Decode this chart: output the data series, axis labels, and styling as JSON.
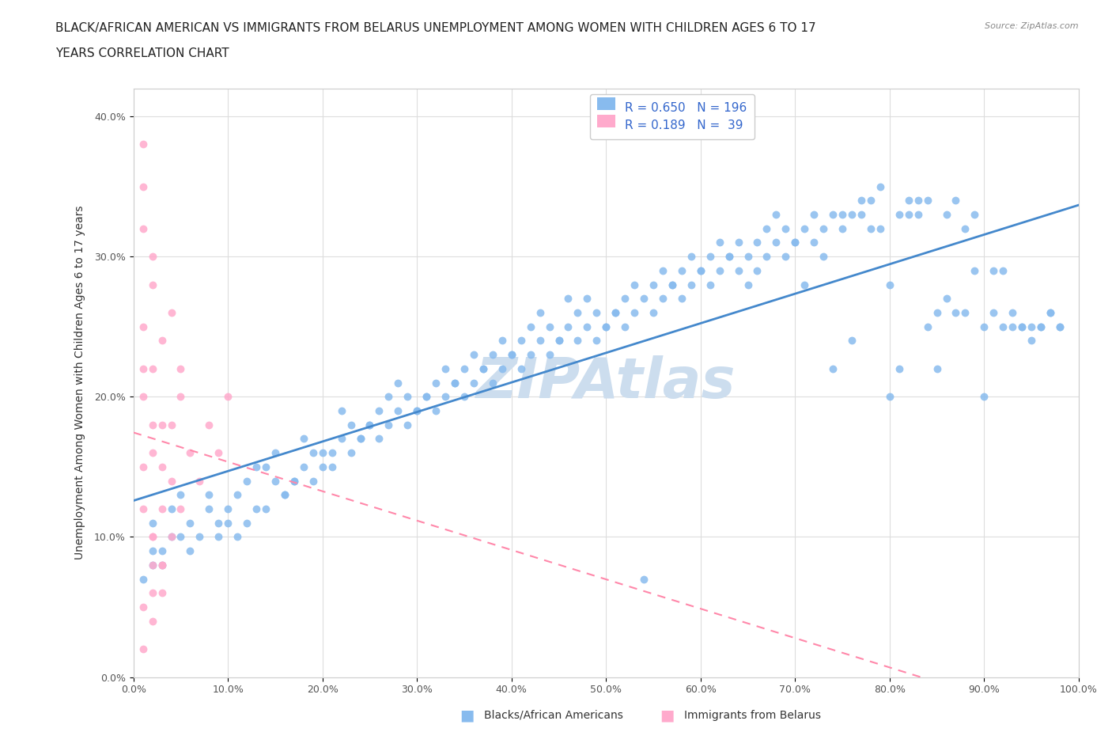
{
  "title_line1": "BLACK/AFRICAN AMERICAN VS IMMIGRANTS FROM BELARUS UNEMPLOYMENT AMONG WOMEN WITH CHILDREN AGES 6 TO 17",
  "title_line2": "YEARS CORRELATION CHART",
  "source": "Source: ZipAtlas.com",
  "xlabel": "",
  "ylabel": "Unemployment Among Women with Children Ages 6 to 17 years",
  "xlim": [
    0.0,
    1.0
  ],
  "ylim": [
    0.0,
    0.42
  ],
  "xticks": [
    0.0,
    0.1,
    0.2,
    0.3,
    0.4,
    0.5,
    0.6,
    0.7,
    0.8,
    0.9,
    1.0
  ],
  "yticks": [
    0.0,
    0.1,
    0.2,
    0.3,
    0.4
  ],
  "xtick_labels": [
    "0.0%",
    "10.0%",
    "20.0%",
    "30.0%",
    "40.0%",
    "50.0%",
    "60.0%",
    "70.0%",
    "80.0%",
    "90.0%",
    "100.0%"
  ],
  "ytick_labels": [
    "0.0%",
    "10.0%",
    "20.0%",
    "30.0%",
    "40.0%"
  ],
  "blue_color": "#88BBEE",
  "pink_color": "#FFAACC",
  "trend_blue": "#4488CC",
  "trend_pink": "#FF88AA",
  "watermark_color": "#CCDDEE",
  "R_blue": 0.65,
  "N_blue": 196,
  "R_pink": 0.189,
  "N_pink": 39,
  "blue_scatter": [
    [
      0.02,
      0.08
    ],
    [
      0.03,
      0.09
    ],
    [
      0.04,
      0.1
    ],
    [
      0.01,
      0.07
    ],
    [
      0.02,
      0.11
    ],
    [
      0.03,
      0.08
    ],
    [
      0.05,
      0.1
    ],
    [
      0.04,
      0.12
    ],
    [
      0.02,
      0.09
    ],
    [
      0.06,
      0.11
    ],
    [
      0.05,
      0.13
    ],
    [
      0.07,
      0.1
    ],
    [
      0.08,
      0.12
    ],
    [
      0.06,
      0.09
    ],
    [
      0.09,
      0.11
    ],
    [
      0.1,
      0.12
    ],
    [
      0.11,
      0.13
    ],
    [
      0.09,
      0.1
    ],
    [
      0.12,
      0.14
    ],
    [
      0.1,
      0.11
    ],
    [
      0.08,
      0.13
    ],
    [
      0.13,
      0.12
    ],
    [
      0.14,
      0.15
    ],
    [
      0.11,
      0.1
    ],
    [
      0.15,
      0.14
    ],
    [
      0.12,
      0.11
    ],
    [
      0.16,
      0.13
    ],
    [
      0.13,
      0.15
    ],
    [
      0.17,
      0.14
    ],
    [
      0.14,
      0.12
    ],
    [
      0.15,
      0.16
    ],
    [
      0.18,
      0.15
    ],
    [
      0.16,
      0.13
    ],
    [
      0.19,
      0.16
    ],
    [
      0.17,
      0.14
    ],
    [
      0.2,
      0.15
    ],
    [
      0.18,
      0.17
    ],
    [
      0.21,
      0.16
    ],
    [
      0.19,
      0.14
    ],
    [
      0.22,
      0.17
    ],
    [
      0.2,
      0.16
    ],
    [
      0.23,
      0.18
    ],
    [
      0.21,
      0.15
    ],
    [
      0.24,
      0.17
    ],
    [
      0.22,
      0.19
    ],
    [
      0.25,
      0.18
    ],
    [
      0.23,
      0.16
    ],
    [
      0.26,
      0.19
    ],
    [
      0.24,
      0.17
    ],
    [
      0.27,
      0.2
    ],
    [
      0.25,
      0.18
    ],
    [
      0.28,
      0.19
    ],
    [
      0.26,
      0.17
    ],
    [
      0.29,
      0.2
    ],
    [
      0.27,
      0.18
    ],
    [
      0.3,
      0.19
    ],
    [
      0.28,
      0.21
    ],
    [
      0.31,
      0.2
    ],
    [
      0.29,
      0.18
    ],
    [
      0.32,
      0.21
    ],
    [
      0.3,
      0.19
    ],
    [
      0.33,
      0.22
    ],
    [
      0.31,
      0.2
    ],
    [
      0.34,
      0.21
    ],
    [
      0.32,
      0.19
    ],
    [
      0.35,
      0.22
    ],
    [
      0.33,
      0.2
    ],
    [
      0.36,
      0.23
    ],
    [
      0.34,
      0.21
    ],
    [
      0.37,
      0.22
    ],
    [
      0.35,
      0.2
    ],
    [
      0.38,
      0.23
    ],
    [
      0.36,
      0.21
    ],
    [
      0.39,
      0.24
    ],
    [
      0.37,
      0.22
    ],
    [
      0.4,
      0.23
    ],
    [
      0.38,
      0.21
    ],
    [
      0.41,
      0.24
    ],
    [
      0.39,
      0.22
    ],
    [
      0.42,
      0.25
    ],
    [
      0.4,
      0.23
    ],
    [
      0.43,
      0.24
    ],
    [
      0.41,
      0.22
    ],
    [
      0.44,
      0.25
    ],
    [
      0.42,
      0.23
    ],
    [
      0.45,
      0.24
    ],
    [
      0.43,
      0.26
    ],
    [
      0.46,
      0.25
    ],
    [
      0.44,
      0.23
    ],
    [
      0.47,
      0.26
    ],
    [
      0.45,
      0.24
    ],
    [
      0.48,
      0.25
    ],
    [
      0.46,
      0.27
    ],
    [
      0.49,
      0.26
    ],
    [
      0.47,
      0.24
    ],
    [
      0.5,
      0.25
    ],
    [
      0.48,
      0.27
    ],
    [
      0.51,
      0.26
    ],
    [
      0.49,
      0.24
    ],
    [
      0.52,
      0.27
    ],
    [
      0.5,
      0.25
    ],
    [
      0.53,
      0.28
    ],
    [
      0.51,
      0.26
    ],
    [
      0.54,
      0.27
    ],
    [
      0.52,
      0.25
    ],
    [
      0.55,
      0.28
    ],
    [
      0.53,
      0.26
    ],
    [
      0.56,
      0.29
    ],
    [
      0.57,
      0.28
    ],
    [
      0.54,
      0.07
    ],
    [
      0.55,
      0.26
    ],
    [
      0.58,
      0.29
    ],
    [
      0.56,
      0.27
    ],
    [
      0.59,
      0.3
    ],
    [
      0.57,
      0.28
    ],
    [
      0.6,
      0.29
    ],
    [
      0.58,
      0.27
    ],
    [
      0.61,
      0.3
    ],
    [
      0.59,
      0.28
    ],
    [
      0.62,
      0.31
    ],
    [
      0.6,
      0.29
    ],
    [
      0.63,
      0.3
    ],
    [
      0.61,
      0.28
    ],
    [
      0.64,
      0.31
    ],
    [
      0.62,
      0.29
    ],
    [
      0.65,
      0.28
    ],
    [
      0.63,
      0.3
    ],
    [
      0.66,
      0.31
    ],
    [
      0.64,
      0.29
    ],
    [
      0.67,
      0.32
    ],
    [
      0.65,
      0.3
    ],
    [
      0.68,
      0.31
    ],
    [
      0.66,
      0.29
    ],
    [
      0.69,
      0.32
    ],
    [
      0.67,
      0.3
    ],
    [
      0.7,
      0.31
    ],
    [
      0.68,
      0.33
    ],
    [
      0.71,
      0.32
    ],
    [
      0.69,
      0.3
    ],
    [
      0.72,
      0.33
    ],
    [
      0.7,
      0.31
    ],
    [
      0.73,
      0.32
    ],
    [
      0.71,
      0.28
    ],
    [
      0.74,
      0.33
    ],
    [
      0.72,
      0.31
    ],
    [
      0.75,
      0.32
    ],
    [
      0.73,
      0.3
    ],
    [
      0.76,
      0.33
    ],
    [
      0.74,
      0.22
    ],
    [
      0.77,
      0.34
    ],
    [
      0.75,
      0.33
    ],
    [
      0.78,
      0.32
    ],
    [
      0.76,
      0.24
    ],
    [
      0.79,
      0.35
    ],
    [
      0.77,
      0.33
    ],
    [
      0.8,
      0.2
    ],
    [
      0.78,
      0.34
    ],
    [
      0.81,
      0.33
    ],
    [
      0.79,
      0.32
    ],
    [
      0.82,
      0.34
    ],
    [
      0.8,
      0.28
    ],
    [
      0.83,
      0.33
    ],
    [
      0.81,
      0.22
    ],
    [
      0.84,
      0.34
    ],
    [
      0.82,
      0.33
    ],
    [
      0.85,
      0.26
    ],
    [
      0.83,
      0.34
    ],
    [
      0.86,
      0.33
    ],
    [
      0.84,
      0.25
    ],
    [
      0.87,
      0.34
    ],
    [
      0.85,
      0.22
    ],
    [
      0.88,
      0.26
    ],
    [
      0.86,
      0.27
    ],
    [
      0.89,
      0.29
    ],
    [
      0.87,
      0.26
    ],
    [
      0.9,
      0.25
    ],
    [
      0.88,
      0.32
    ],
    [
      0.91,
      0.26
    ],
    [
      0.89,
      0.33
    ],
    [
      0.92,
      0.25
    ],
    [
      0.9,
      0.2
    ],
    [
      0.93,
      0.25
    ],
    [
      0.91,
      0.29
    ],
    [
      0.94,
      0.25
    ],
    [
      0.92,
      0.29
    ],
    [
      0.95,
      0.25
    ],
    [
      0.93,
      0.26
    ],
    [
      0.96,
      0.25
    ],
    [
      0.94,
      0.25
    ],
    [
      0.97,
      0.26
    ],
    [
      0.95,
      0.24
    ],
    [
      0.98,
      0.25
    ],
    [
      0.96,
      0.25
    ],
    [
      0.97,
      0.26
    ],
    [
      0.98,
      0.25
    ]
  ],
  "pink_scatter": [
    [
      0.01,
      0.05
    ],
    [
      0.02,
      0.1
    ],
    [
      0.01,
      0.15
    ],
    [
      0.02,
      0.18
    ],
    [
      0.01,
      0.2
    ],
    [
      0.02,
      0.22
    ],
    [
      0.01,
      0.12
    ],
    [
      0.03,
      0.08
    ],
    [
      0.02,
      0.06
    ],
    [
      0.01,
      0.25
    ],
    [
      0.02,
      0.28
    ],
    [
      0.03,
      0.15
    ],
    [
      0.01,
      0.02
    ],
    [
      0.02,
      0.04
    ],
    [
      0.03,
      0.12
    ],
    [
      0.04,
      0.1
    ],
    [
      0.02,
      0.16
    ],
    [
      0.01,
      0.32
    ],
    [
      0.03,
      0.18
    ],
    [
      0.02,
      0.08
    ],
    [
      0.04,
      0.14
    ],
    [
      0.01,
      0.22
    ],
    [
      0.03,
      0.06
    ],
    [
      0.05,
      0.12
    ],
    [
      0.02,
      0.3
    ],
    [
      0.04,
      0.18
    ],
    [
      0.01,
      0.38
    ],
    [
      0.03,
      0.24
    ],
    [
      0.06,
      0.16
    ],
    [
      0.02,
      0.1
    ],
    [
      0.05,
      0.2
    ],
    [
      0.01,
      0.35
    ],
    [
      0.04,
      0.26
    ],
    [
      0.07,
      0.14
    ],
    [
      0.03,
      0.08
    ],
    [
      0.08,
      0.18
    ],
    [
      0.05,
      0.22
    ],
    [
      0.09,
      0.16
    ],
    [
      0.1,
      0.2
    ]
  ]
}
